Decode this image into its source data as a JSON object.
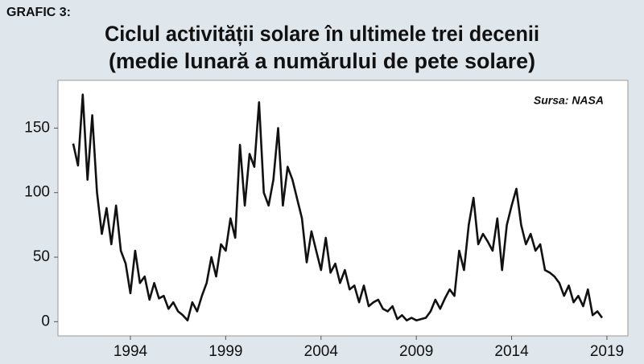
{
  "chart_data": {
    "type": "line",
    "label": "GRAFIC 3:",
    "title": "Ciclul activității solare în ultimele trei decenii",
    "subtitle": "(medie lunară a numărului de pete solare)",
    "source": "Sursa: NASA",
    "color": "#111111",
    "grid": false,
    "xlim": [
      1990.2,
      2020.1
    ],
    "xticks": [
      1994,
      1999,
      2004,
      2009,
      2014,
      2019
    ],
    "ylim": [
      -11,
      187
    ],
    "yticks": [
      0,
      50,
      100,
      150
    ],
    "x": [
      1991.0,
      1991.25,
      1991.5,
      1991.75,
      1992.0,
      1992.25,
      1992.5,
      1992.75,
      1993.0,
      1993.25,
      1993.5,
      1993.75,
      1994.0,
      1994.25,
      1994.5,
      1994.75,
      1995.0,
      1995.25,
      1995.5,
      1995.75,
      1996.0,
      1996.25,
      1996.5,
      1996.75,
      1997.0,
      1997.25,
      1997.5,
      1997.75,
      1998.0,
      1998.25,
      1998.5,
      1998.75,
      1999.0,
      1999.25,
      1999.5,
      1999.75,
      2000.0,
      2000.25,
      2000.5,
      2000.75,
      2001.0,
      2001.25,
      2001.5,
      2001.75,
      2002.0,
      2002.25,
      2002.5,
      2002.75,
      2003.0,
      2003.25,
      2003.5,
      2003.75,
      2004.0,
      2004.25,
      2004.5,
      2004.75,
      2005.0,
      2005.25,
      2005.5,
      2005.75,
      2006.0,
      2006.25,
      2006.5,
      2006.75,
      2007.0,
      2007.25,
      2007.5,
      2007.75,
      2008.0,
      2008.25,
      2008.5,
      2008.75,
      2009.0,
      2009.25,
      2009.5,
      2009.75,
      2010.0,
      2010.25,
      2010.5,
      2010.75,
      2011.0,
      2011.25,
      2011.5,
      2011.75,
      2012.0,
      2012.25,
      2012.5,
      2012.75,
      2013.0,
      2013.25,
      2013.5,
      2013.75,
      2014.0,
      2014.25,
      2014.5,
      2014.75,
      2015.0,
      2015.25,
      2015.5,
      2015.75,
      2016.0,
      2016.25,
      2016.5,
      2016.75,
      2017.0,
      2017.25,
      2017.5,
      2017.75,
      2018.0,
      2018.25,
      2018.5,
      2018.75
    ],
    "values": [
      138,
      121,
      176,
      110,
      160,
      100,
      68,
      88,
      60,
      90,
      55,
      45,
      22,
      55,
      30,
      35,
      17,
      30,
      18,
      20,
      10,
      15,
      8,
      5,
      1,
      15,
      8,
      20,
      30,
      50,
      35,
      60,
      55,
      80,
      65,
      137,
      90,
      130,
      120,
      170,
      100,
      90,
      110,
      150,
      90,
      120,
      110,
      95,
      80,
      46,
      70,
      55,
      40,
      65,
      38,
      45,
      30,
      40,
      25,
      28,
      15,
      28,
      12,
      15,
      17,
      10,
      8,
      12,
      2,
      5,
      1,
      3,
      1,
      2,
      3,
      8,
      17,
      10,
      18,
      25,
      20,
      55,
      40,
      75,
      96,
      60,
      68,
      62,
      55,
      80,
      40,
      75,
      90,
      103,
      75,
      60,
      68,
      55,
      60,
      40,
      38,
      35,
      30,
      20,
      28,
      15,
      20,
      12,
      25,
      5,
      8,
      3
    ]
  }
}
